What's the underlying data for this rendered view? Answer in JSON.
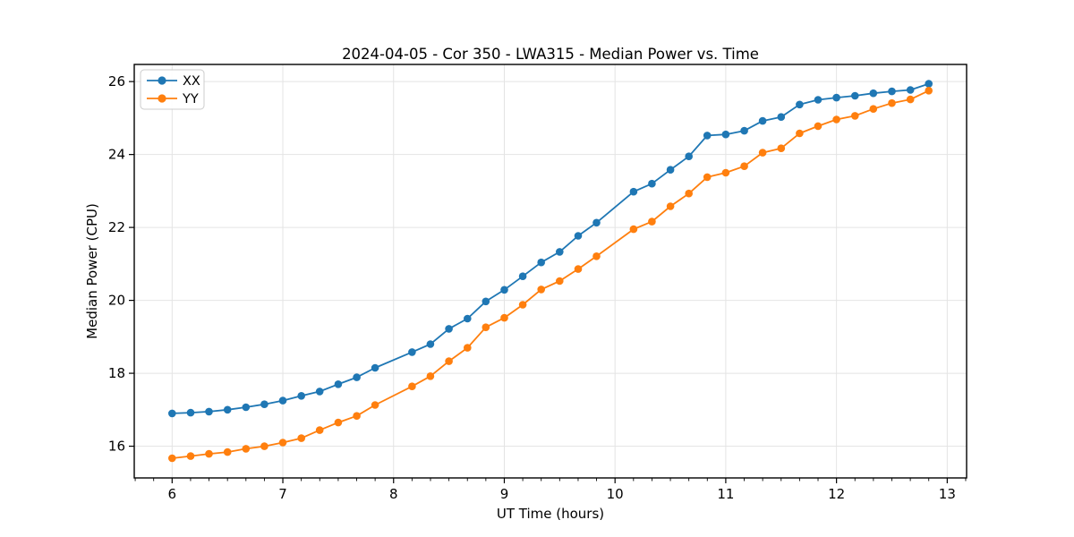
{
  "figure": {
    "background": "#ffffff",
    "frame_color": "#000000",
    "grid_color": "#e4e4e4"
  },
  "chart_data": {
    "type": "line",
    "title": "2024-04-05 - Cor 350 - LWA315 - Median Power vs. Time",
    "xlabel": "UT Time (hours)",
    "ylabel": "Median Power (CPU)",
    "xlim": [
      5.658,
      13.175
    ],
    "ylim": [
      15.13,
      26.47
    ],
    "x_ticks": [
      6,
      7,
      8,
      9,
      10,
      11,
      12,
      13
    ],
    "y_ticks": [
      16,
      18,
      20,
      22,
      24,
      26
    ],
    "x_minor_ticks_per_hour": 6,
    "grid": true,
    "legend_position": "upper-left",
    "marker": "circle",
    "x": [
      6.0,
      6.167,
      6.333,
      6.5,
      6.667,
      6.833,
      7.0,
      7.167,
      7.333,
      7.5,
      7.667,
      7.833,
      8.167,
      8.333,
      8.5,
      8.667,
      8.833,
      9.0,
      9.167,
      9.333,
      9.5,
      9.667,
      9.833,
      10.167,
      10.333,
      10.5,
      10.667,
      10.833,
      11.0,
      11.167,
      11.333,
      11.5,
      11.667,
      11.833,
      12.0,
      12.167,
      12.333,
      12.5,
      12.667,
      12.833
    ],
    "series": [
      {
        "name": "XX",
        "color": "#1f77b4",
        "values": [
          16.9,
          16.92,
          16.95,
          17.0,
          17.07,
          17.15,
          17.25,
          17.38,
          17.5,
          17.7,
          17.89,
          18.15,
          18.58,
          18.8,
          19.22,
          19.5,
          19.97,
          20.29,
          20.66,
          21.04,
          21.33,
          21.77,
          22.13,
          22.98,
          23.2,
          23.58,
          23.95,
          24.52,
          24.55,
          24.65,
          24.92,
          25.03,
          25.37,
          25.5,
          25.56,
          25.61,
          25.68,
          25.73,
          25.77,
          25.94
        ]
      },
      {
        "name": "YY",
        "color": "#ff7f0e",
        "values": [
          15.67,
          15.73,
          15.79,
          15.84,
          15.93,
          16.0,
          16.1,
          16.22,
          16.44,
          16.65,
          16.83,
          17.13,
          17.64,
          17.92,
          18.33,
          18.7,
          19.26,
          19.52,
          19.88,
          20.3,
          20.53,
          20.86,
          21.21,
          21.95,
          22.16,
          22.58,
          22.93,
          23.38,
          23.5,
          23.68,
          24.05,
          24.17,
          24.58,
          24.78,
          24.96,
          25.06,
          25.25,
          25.41,
          25.51,
          25.75
        ]
      }
    ]
  },
  "legend": {
    "items": [
      {
        "label": "XX",
        "color": "#1f77b4"
      },
      {
        "label": "YY",
        "color": "#ff7f0e"
      }
    ]
  }
}
